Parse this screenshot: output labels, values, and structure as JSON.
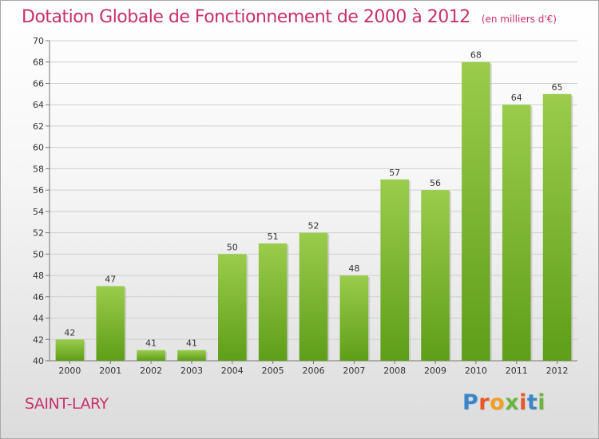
{
  "header": {
    "title": "Dotation Globale de Fonctionnement de 2000 à 2012",
    "subtitle": "(en milliers d'€)"
  },
  "footer": {
    "commune": "SAINT-LARY",
    "logo": [
      "P",
      "r",
      "o",
      "x",
      "i",
      "t",
      "i"
    ],
    "logo_colors": [
      "#3a86c8",
      "#e8572a",
      "#f0a020",
      "#6cb33f",
      "#e8572a",
      "#3a86c8",
      "#6cb33f"
    ]
  },
  "chart_data": {
    "type": "bar",
    "categories": [
      "2000",
      "2001",
      "2002",
      "2003",
      "2004",
      "2005",
      "2006",
      "2007",
      "2008",
      "2009",
      "2010",
      "2011",
      "2012"
    ],
    "values": [
      42,
      47,
      41,
      41,
      50,
      51,
      52,
      48,
      57,
      56,
      68,
      64,
      65
    ],
    "title": "Dotation Globale de Fonctionnement de 2000 à 2012",
    "ylim": [
      40,
      70
    ],
    "yticks": [
      40,
      42,
      44,
      46,
      48,
      50,
      52,
      54,
      56,
      58,
      60,
      62,
      64,
      66,
      68,
      70
    ],
    "grid": true,
    "bar_color_top": "#9bcc4c",
    "bar_color_bottom": "#5e9e18"
  }
}
